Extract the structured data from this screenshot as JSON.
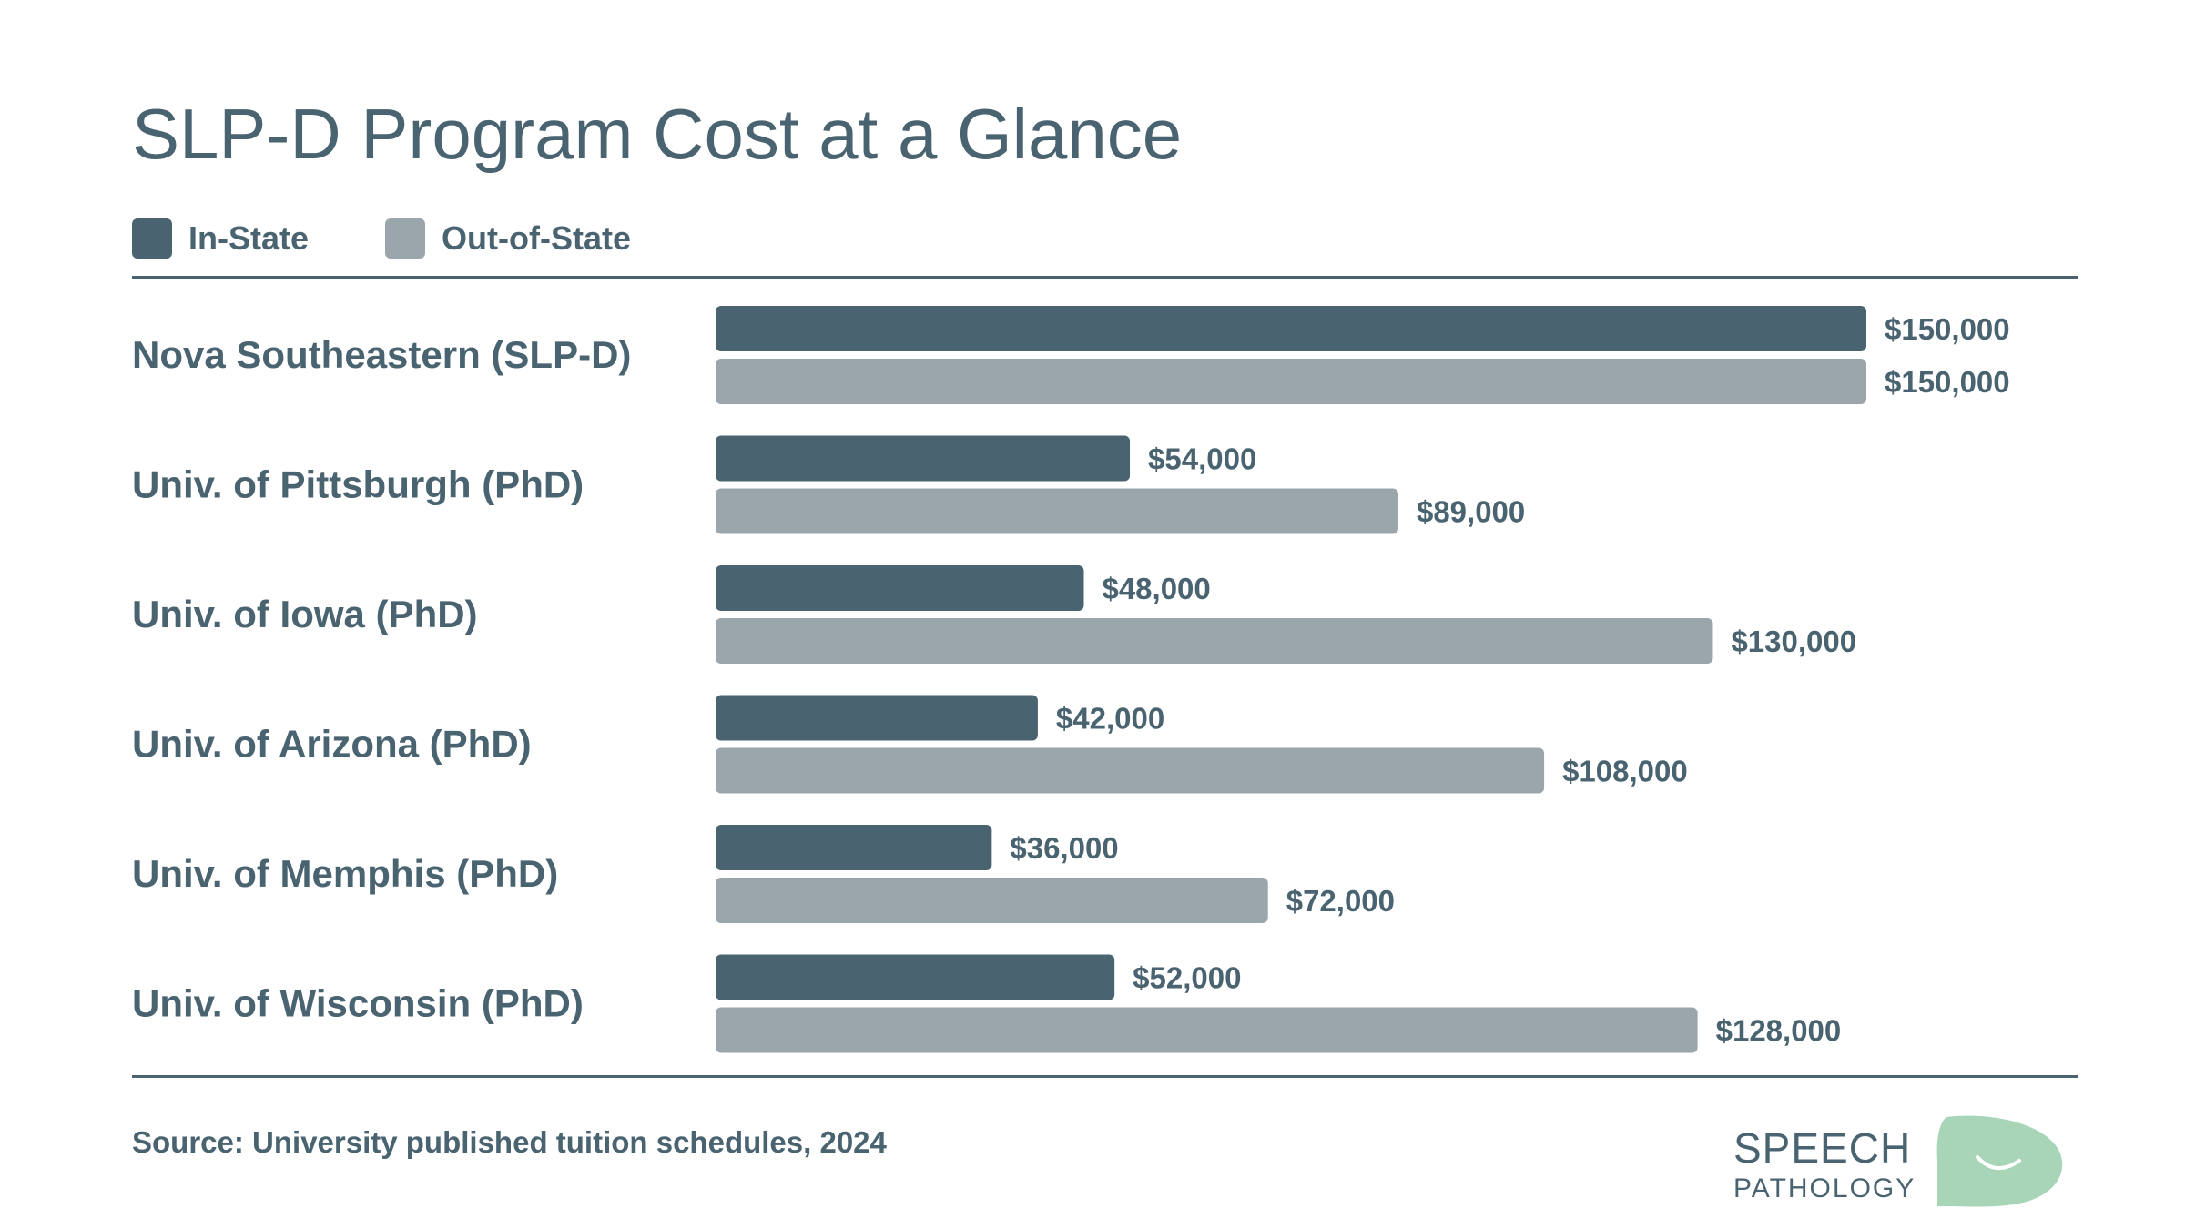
{
  "header": {
    "title": "SLP-D Program Cost at a Glance"
  },
  "legend": [
    {
      "label": "In-State",
      "color": "#4a6370"
    },
    {
      "label": "Out-of-State",
      "color": "#9aa6ac"
    }
  ],
  "footer": {
    "source": "Source: University published tuition schedules, 2024"
  },
  "logo": {
    "line1": "SPEECH",
    "line2": "PATHOLOGY",
    "text_color": "#4a6370",
    "bubble_color": "#a8d5b8"
  },
  "chart_data": {
    "type": "bar",
    "orientation": "horizontal",
    "title": "SLP-D Program Cost at a Glance",
    "categories": [
      "Nova Southeastern (SLP-D)",
      "Univ. of Pittsburgh (PhD)",
      "Univ. of Iowa (PhD)",
      "Univ. of Arizona (PhD)",
      "Univ. of Memphis (PhD)",
      "Univ. of Wisconsin (PhD)"
    ],
    "series": [
      {
        "name": "In-State",
        "color": "#4a6370",
        "values": [
          150000,
          54000,
          48000,
          42000,
          36000,
          52000
        ],
        "labels": [
          "$150,000",
          "$54,000",
          "$48,000",
          "$42,000",
          "$36,000",
          "$52,000"
        ]
      },
      {
        "name": "Out-of-State",
        "color": "#9aa6ac",
        "values": [
          150000,
          89000,
          130000,
          108000,
          72000,
          128000
        ],
        "labels": [
          "$150,000",
          "$89,000",
          "$130,000",
          "$108,000",
          "$72,000",
          "$128,000"
        ]
      }
    ],
    "xlim": [
      0,
      150000
    ],
    "grid": false,
    "legend_position": "top-left"
  }
}
